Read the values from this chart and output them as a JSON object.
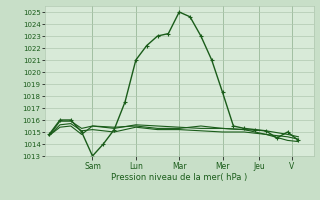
{
  "background_color": "#c8dfc8",
  "plot_bg_color": "#d8ead8",
  "grid_color": "#b0c8b0",
  "line_color": "#1a5c1a",
  "title": "Pression niveau de la mer( hPa )",
  "ylim": [
    1013,
    1025.5
  ],
  "yticks": [
    1013,
    1014,
    1015,
    1016,
    1017,
    1018,
    1019,
    1020,
    1021,
    1022,
    1023,
    1024,
    1025
  ],
  "day_labels": [
    "Sam",
    "Lun",
    "Mar",
    "Mer",
    "Jeu",
    "V"
  ],
  "day_positions": [
    2.0,
    4.0,
    6.0,
    8.0,
    9.7,
    11.2
  ],
  "xlim": [
    -0.2,
    12.2
  ],
  "series": [
    {
      "x": [
        0,
        0.5,
        1,
        1.5,
        2,
        2.5,
        3,
        3.5,
        4,
        4.5,
        5,
        5.5,
        6,
        6.5,
        7,
        7.5,
        8,
        8.5,
        9,
        9.5,
        10,
        10.5,
        11,
        11.5
      ],
      "y": [
        1014.8,
        1016.0,
        1016.0,
        1015.0,
        1013.0,
        1014.0,
        1015.2,
        1017.5,
        1021.0,
        1022.2,
        1023.0,
        1023.2,
        1025.0,
        1024.6,
        1023.0,
        1021.0,
        1018.3,
        1015.5,
        1015.3,
        1015.2,
        1015.1,
        1014.5,
        1015.0,
        1014.3
      ],
      "marker": "+",
      "linewidth": 1.0,
      "markersize": 3.5
    },
    {
      "x": [
        0,
        0.5,
        1,
        1.5,
        2,
        3,
        4,
        5,
        6,
        7,
        8,
        9,
        10,
        11,
        11.5
      ],
      "y": [
        1014.7,
        1015.9,
        1015.9,
        1015.3,
        1015.5,
        1015.3,
        1015.6,
        1015.5,
        1015.4,
        1015.3,
        1015.3,
        1015.2,
        1015.1,
        1014.8,
        1014.6
      ],
      "marker": null,
      "linewidth": 0.8,
      "markersize": 0
    },
    {
      "x": [
        0,
        0.5,
        1,
        1.5,
        2,
        3,
        4,
        5,
        6,
        7,
        8,
        9,
        10,
        11,
        11.5
      ],
      "y": [
        1014.7,
        1015.6,
        1015.7,
        1015.1,
        1015.2,
        1015.0,
        1015.4,
        1015.2,
        1015.2,
        1015.1,
        1015.0,
        1015.0,
        1014.8,
        1014.6,
        1014.4
      ],
      "marker": null,
      "linewidth": 0.8,
      "markersize": 0
    },
    {
      "x": [
        0,
        0.5,
        1,
        1.5,
        2,
        3,
        4,
        5,
        6,
        7,
        8,
        9,
        10,
        11,
        11.5
      ],
      "y": [
        1014.7,
        1015.4,
        1015.5,
        1014.8,
        1015.5,
        1015.4,
        1015.5,
        1015.3,
        1015.3,
        1015.5,
        1015.3,
        1015.2,
        1014.8,
        1014.3,
        1014.2
      ],
      "marker": null,
      "linewidth": 0.8,
      "markersize": 0
    }
  ]
}
